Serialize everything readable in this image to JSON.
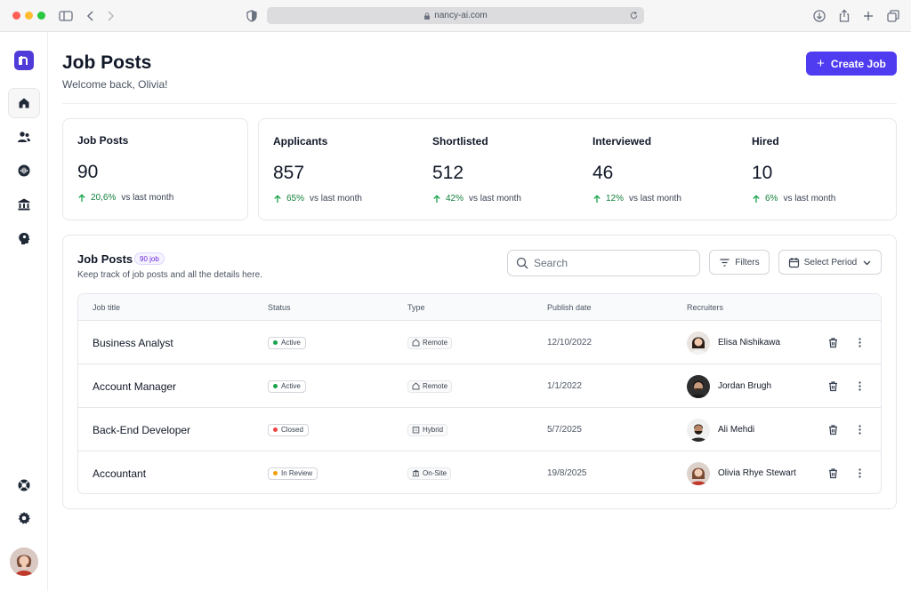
{
  "browser": {
    "url": "nancy-ai.com"
  },
  "header": {
    "title": "Job Posts",
    "welcome": "Welcome back, Olivia!",
    "create_label": "Create Job"
  },
  "stats": [
    {
      "label": "Job Posts",
      "value": "90",
      "change": "20,6%",
      "compare": "vs last month"
    },
    {
      "label": "Applicants",
      "value": "857",
      "change": "65%",
      "compare": "vs last month"
    },
    {
      "label": "Shortlisted",
      "value": "512",
      "change": "42%",
      "compare": "vs last month"
    },
    {
      "label": "Interviewed",
      "value": "46",
      "change": "12%",
      "compare": "vs last month"
    },
    {
      "label": "Hired",
      "value": "10",
      "change": "6%",
      "compare": "vs last month"
    }
  ],
  "table": {
    "title": "Job Posts",
    "badge": "90 job",
    "subtitle": "Keep track of job posts and all the details here.",
    "search_placeholder": "Search",
    "filters_label": "Filters",
    "period_label": "Select Period",
    "columns": [
      "Job title",
      "Status",
      "Type",
      "Publish date",
      "Recruiters"
    ],
    "rows": [
      {
        "title": "Business Analyst",
        "status": "Active",
        "status_color": "#16a34a",
        "type": "Remote",
        "type_icon": "house-icon",
        "date": "12/10/2022",
        "recruiter": "Elisa Nishikawa"
      },
      {
        "title": "Account Manager",
        "status": "Active",
        "status_color": "#16a34a",
        "type": "Remote",
        "type_icon": "house-icon",
        "date": "1/1/2022",
        "recruiter": "Jordan Brugh"
      },
      {
        "title": "Back-End Developer",
        "status": "Closed",
        "status_color": "#ef4444",
        "type": "Hybrid",
        "type_icon": "building-icon",
        "date": "5/7/2025",
        "recruiter": "Ali Mehdi"
      },
      {
        "title": "Accountant",
        "status": "In Review",
        "status_color": "#f59e0b",
        "type": "On-Site",
        "type_icon": "bank-icon",
        "date": "19/8/2025",
        "recruiter": "Olivia Rhye Stewart"
      }
    ]
  },
  "colors": {
    "accent": "#4f3bf0",
    "positive": "#16a34a"
  }
}
